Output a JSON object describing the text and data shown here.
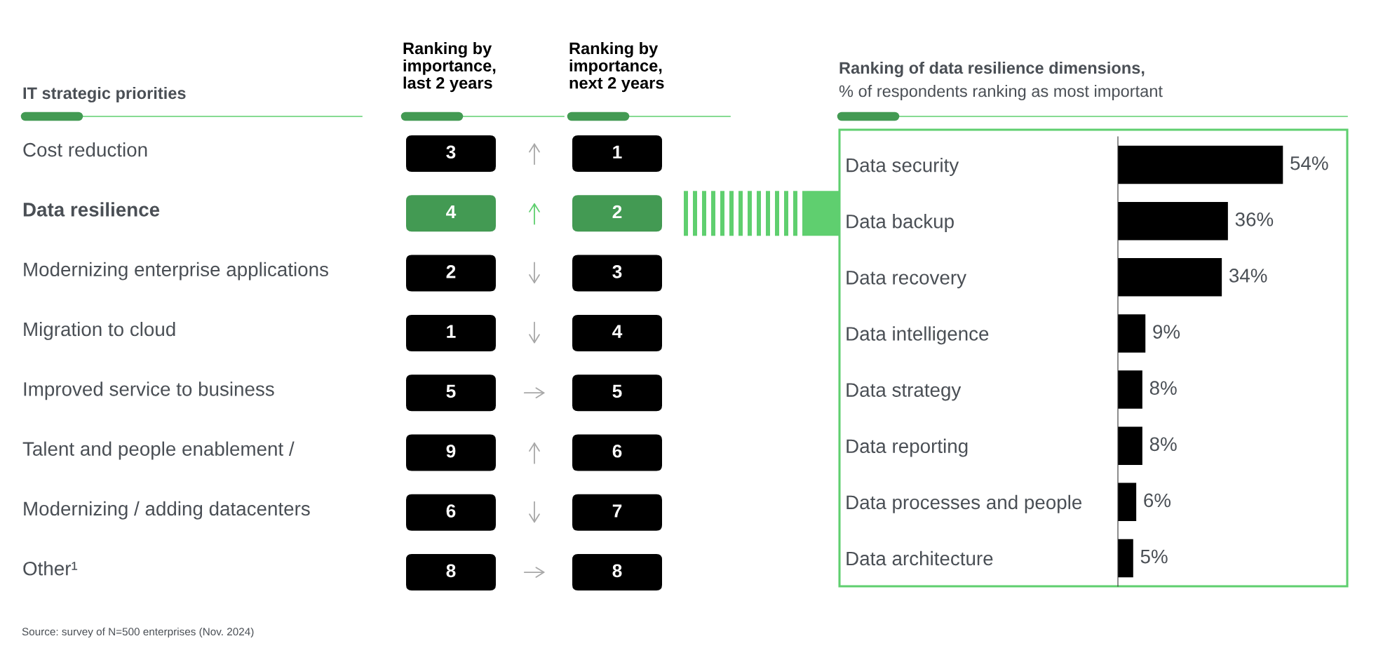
{
  "chart_data": [
    {
      "type": "other",
      "title": "IT strategic priorities",
      "categories": [
        "Cost reduction",
        "Data resilience",
        "Modernizing enterprise applications",
        "Migration to cloud",
        "Improved service to business",
        "Talent and people enablement /",
        "Modernizing / adding datacenters",
        "Other¹"
      ],
      "series": [
        {
          "name": "Ranking by importance, last 2 years",
          "colors": [
            "#000000",
            "#439a53",
            "#000000",
            "#000000",
            "#000000",
            "#000000",
            "#000000",
            "#000000"
          ],
          "values": [
            3,
            4,
            2,
            1,
            5,
            9,
            6,
            8
          ]
        },
        {
          "name": "Ranking by importance, next 2 years",
          "colors": [
            "#000000",
            "#439a53",
            "#000000",
            "#000000",
            "#000000",
            "#000000",
            "#000000",
            "#000000"
          ],
          "values": [
            1,
            2,
            3,
            4,
            5,
            6,
            7,
            8
          ]
        }
      ],
      "data_labels": true,
      "annotations": [
        "Source: survey of N=500 enterprises (Nov. 2024)"
      ]
    },
    {
      "type": "bar",
      "orientation": "horizontal",
      "title": "Ranking of data resilience dimensions,",
      "subtitle": "% of respondents ranking as most important",
      "categories": [
        "Data security",
        "Data backup",
        "Data recovery",
        "Data intelligence",
        "Data strategy",
        "Data reporting",
        "Data processes and people",
        "Data architecture"
      ],
      "values": [
        54,
        36,
        34,
        9,
        8,
        8,
        6,
        5
      ],
      "color": "#000000",
      "value_labels": [
        "54%",
        "36%",
        "34%",
        "9%",
        "8%",
        "8%",
        "6%",
        "5%"
      ],
      "tick_labels": "y"
    }
  ]
}
